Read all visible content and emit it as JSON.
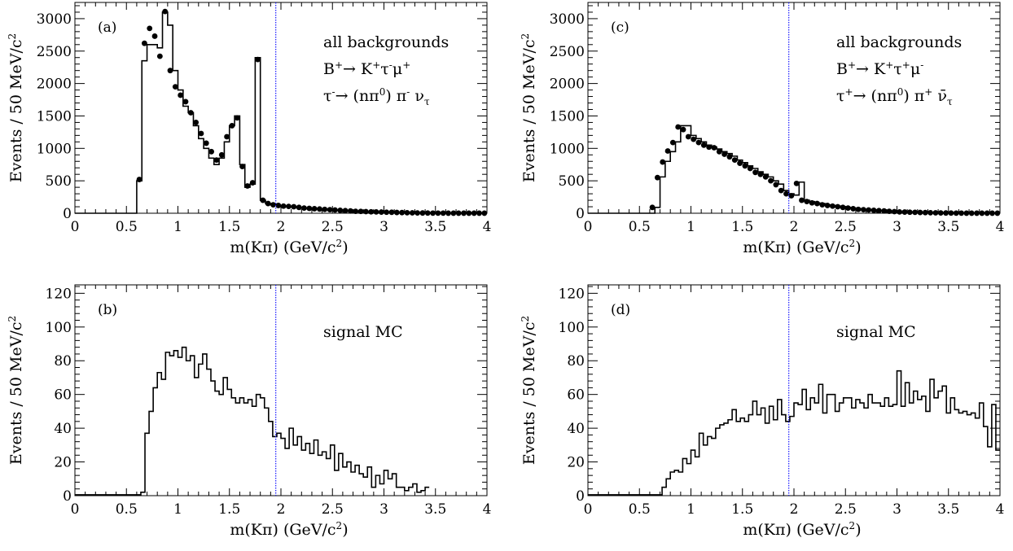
{
  "figure": {
    "panels": [
      {
        "label": "(a)",
        "type": "histogram_with_points",
        "xlabel": "m(Kπ) (GeV/c²)",
        "ylabel": "Events / 50 MeV/c²",
        "xlim": [
          0,
          4
        ],
        "ylim": [
          0,
          3250
        ],
        "xticks": [
          "0",
          "0.5",
          "1",
          "1.5",
          "2",
          "2.5",
          "3",
          "3.5",
          "4"
        ],
        "yticks": [
          "0",
          "500",
          "1000",
          "1500",
          "2000",
          "2500",
          "3000"
        ],
        "vline_x": 1.95,
        "annotations": [
          "all backgrounds",
          "B⁺→ K⁺τ⁻μ⁺",
          "τ⁻→ (nπ⁰) π⁻ ντ"
        ]
      },
      {
        "label": "(b)",
        "type": "histogram",
        "xlabel": "m(Kπ) (GeV/c²)",
        "ylabel": "Events / 50 MeV/c²",
        "xlim": [
          0,
          4
        ],
        "ylim": [
          0,
          125
        ],
        "xticks": [
          "0",
          "0.5",
          "1",
          "1.5",
          "2",
          "2.5",
          "3",
          "3.5",
          "4"
        ],
        "yticks": [
          "0",
          "20",
          "40",
          "60",
          "80",
          "100",
          "120"
        ],
        "vline_x": 1.95,
        "annotations": [
          "signal MC"
        ]
      },
      {
        "label": "(c)",
        "type": "histogram_with_points",
        "xlabel": "m(Kπ) (GeV/c²)",
        "ylabel": "Events / 50 MeV/c²",
        "xlim": [
          0,
          4
        ],
        "ylim": [
          0,
          3250
        ],
        "xticks": [
          "0",
          "0.5",
          "1",
          "1.5",
          "2",
          "2.5",
          "3",
          "3.5",
          "4"
        ],
        "yticks": [
          "0",
          "500",
          "1000",
          "1500",
          "2000",
          "2500",
          "3000"
        ],
        "vline_x": 1.95,
        "annotations": [
          "all backgrounds",
          "B⁺→ K⁺τ⁺μ⁻",
          "τ⁺→ (nπ⁰) π⁺ ν̄τ"
        ]
      },
      {
        "label": "(d)",
        "type": "histogram",
        "xlabel": "m(Kπ) (GeV/c²)",
        "ylabel": "Events / 50 MeV/c²",
        "xlim": [
          0,
          4
        ],
        "ylim": [
          0,
          125
        ],
        "xticks": [
          "0",
          "0.5",
          "1",
          "1.5",
          "2",
          "2.5",
          "3",
          "3.5",
          "4"
        ],
        "yticks": [
          "0",
          "20",
          "40",
          "60",
          "80",
          "100",
          "120"
        ],
        "vline_x": 1.95,
        "annotations": [
          "signal MC"
        ]
      }
    ],
    "colors": {
      "vline": "#1a1aff",
      "axis": "#000000",
      "histogram": "#000000",
      "points": "#000000"
    }
  },
  "chart_data": [
    {
      "type": "histogram",
      "panel": "(a)",
      "bin_width": 0.05,
      "x_start": 0,
      "hist": [
        0,
        0,
        0,
        0,
        0,
        0,
        0,
        0,
        0,
        0,
        0,
        0,
        500,
        2350,
        2600,
        2600,
        2550,
        3100,
        2900,
        2200,
        1900,
        1650,
        1550,
        1350,
        1150,
        1000,
        850,
        750,
        850,
        1100,
        1350,
        1500,
        750,
        400,
        450,
        2400,
        200,
        150,
        130,
        120,
        110,
        105,
        100,
        90,
        80,
        75,
        70,
        65,
        60,
        55,
        50,
        45,
        40,
        35,
        30,
        28,
        25,
        22,
        20,
        18,
        16,
        15,
        12,
        10,
        8,
        6,
        5,
        4,
        3,
        2,
        0,
        0,
        0,
        0,
        0,
        0,
        0,
        0,
        0,
        0
      ],
      "points_x": [
        0.625,
        0.675,
        0.725,
        0.775,
        0.825,
        0.875,
        0.925,
        0.975,
        1.025,
        1.075,
        1.125,
        1.175,
        1.225,
        1.275,
        1.325,
        1.375,
        1.425,
        1.475,
        1.525,
        1.575,
        1.625,
        1.675,
        1.725,
        1.775,
        1.825,
        1.875,
        1.925,
        1.975,
        2.025,
        2.075,
        2.125,
        2.175,
        2.225,
        2.275,
        2.325,
        2.375,
        2.425,
        2.475,
        2.525,
        2.575,
        2.625,
        2.675,
        2.725,
        2.775,
        2.825,
        2.875,
        2.925,
        2.975,
        3.025,
        3.075,
        3.125,
        3.175,
        3.225,
        3.275,
        3.325,
        3.375,
        3.425,
        3.475,
        3.525,
        3.575,
        3.625,
        3.675,
        3.725,
        3.775,
        3.825,
        3.875,
        3.925,
        3.975
      ],
      "points_y": [
        520,
        2620,
        2850,
        2730,
        2420,
        3110,
        2200,
        1950,
        1820,
        1720,
        1550,
        1400,
        1230,
        1080,
        950,
        820,
        900,
        1180,
        1350,
        1470,
        720,
        420,
        470,
        2370,
        200,
        150,
        130,
        120,
        110,
        105,
        100,
        90,
        80,
        75,
        70,
        65,
        60,
        55,
        50,
        45,
        40,
        35,
        30,
        28,
        25,
        22,
        20,
        18,
        16,
        15,
        12,
        10,
        8,
        6,
        5,
        4,
        3,
        2,
        2,
        2,
        1,
        1,
        1,
        1,
        1,
        1,
        1,
        1
      ]
    },
    {
      "type": "histogram",
      "panel": "(b)",
      "bin_width": 0.04,
      "x_start": 0,
      "hist": [
        0.5,
        0.5,
        0.5,
        0.5,
        0.5,
        0.5,
        0.5,
        0.5,
        0.5,
        0.5,
        0.5,
        0.5,
        0.5,
        0.5,
        0.5,
        0.5,
        2,
        37,
        50,
        64,
        73,
        69,
        85,
        83,
        86,
        82,
        88,
        80,
        83,
        70,
        78,
        84,
        75,
        68,
        62,
        60,
        70,
        63,
        58,
        55,
        58,
        55,
        57,
        53,
        60,
        58,
        52,
        44,
        35,
        37,
        34,
        28,
        40,
        30,
        35,
        27,
        31,
        25,
        33,
        24,
        26,
        22,
        30,
        15,
        25,
        17,
        20,
        14,
        18,
        13,
        11,
        17,
        5,
        12,
        7,
        15,
        10,
        13,
        5,
        5,
        3,
        5,
        7,
        2,
        3,
        5
      ],
      "points_x": [],
      "points_y": []
    },
    {
      "type": "histogram",
      "panel": "(c)",
      "bin_width": 0.05,
      "x_start": 0,
      "hist": [
        0,
        0,
        0,
        0,
        0,
        0,
        0,
        0,
        0,
        0,
        0,
        0,
        0,
        90,
        560,
        800,
        950,
        1100,
        1350,
        1350,
        1200,
        1150,
        1100,
        1050,
        1020,
        990,
        950,
        920,
        880,
        820,
        780,
        730,
        690,
        640,
        600,
        560,
        500,
        450,
        350,
        300,
        280,
        480,
        200,
        180,
        160,
        150,
        130,
        120,
        110,
        100,
        90,
        80,
        70,
        60,
        55,
        50,
        45,
        40,
        35,
        30,
        25,
        20,
        18,
        16,
        14,
        12,
        10,
        8,
        6,
        5,
        4,
        3,
        2,
        2,
        1,
        1,
        1,
        0,
        0,
        0
      ],
      "points_x": [
        0.625,
        0.675,
        0.725,
        0.775,
        0.825,
        0.875,
        0.925,
        0.975,
        1.025,
        1.075,
        1.125,
        1.175,
        1.225,
        1.275,
        1.325,
        1.375,
        1.425,
        1.475,
        1.525,
        1.575,
        1.625,
        1.675,
        1.725,
        1.775,
        1.825,
        1.875,
        1.925,
        1.975,
        2.025,
        2.075,
        2.125,
        2.175,
        2.225,
        2.275,
        2.325,
        2.375,
        2.425,
        2.475,
        2.525,
        2.575,
        2.625,
        2.675,
        2.725,
        2.775,
        2.825,
        2.875,
        2.925,
        2.975,
        3.025,
        3.075,
        3.125,
        3.175,
        3.225,
        3.275,
        3.325,
        3.375,
        3.425,
        3.475,
        3.525,
        3.575,
        3.625,
        3.675,
        3.725,
        3.775,
        3.825,
        3.875,
        3.925,
        3.975
      ],
      "points_y": [
        90,
        550,
        790,
        960,
        1090,
        1330,
        1290,
        1180,
        1140,
        1090,
        1050,
        1020,
        1010,
        950,
        910,
        870,
        820,
        770,
        730,
        690,
        630,
        600,
        560,
        500,
        440,
        350,
        300,
        270,
        460,
        200,
        180,
        160,
        150,
        130,
        120,
        110,
        100,
        90,
        80,
        70,
        60,
        55,
        50,
        45,
        40,
        35,
        30,
        25,
        20,
        18,
        16,
        14,
        12,
        10,
        8,
        6,
        5,
        4,
        3,
        2,
        2,
        1,
        1,
        1,
        1,
        1,
        1,
        1
      ]
    },
    {
      "type": "histogram",
      "panel": "(d)",
      "bin_width": 0.04,
      "x_start": 0,
      "hist": [
        0.5,
        0.5,
        0.5,
        0.5,
        0.5,
        0.5,
        0.5,
        0.5,
        0.5,
        0.5,
        0.5,
        0.5,
        0.5,
        0.5,
        0.5,
        0.5,
        0.5,
        0.5,
        5,
        10,
        14,
        15,
        14,
        22,
        19,
        27,
        23,
        37,
        30,
        35,
        34,
        40,
        42,
        43,
        45,
        51,
        44,
        46,
        44,
        48,
        56,
        48,
        52,
        43,
        53,
        45,
        57,
        48,
        44,
        47,
        55,
        54,
        63,
        51,
        58,
        55,
        66,
        49,
        60,
        60,
        50,
        55,
        58,
        58,
        52,
        57,
        55,
        52,
        60,
        55,
        55,
        53,
        58,
        53,
        54,
        74,
        53,
        67,
        55,
        62,
        57,
        59,
        50,
        69,
        58,
        62,
        65,
        49,
        58,
        51,
        49,
        50,
        48,
        49,
        46,
        55,
        41,
        29,
        54,
        27,
        8,
        2,
        2,
        1,
        1,
        1,
        1,
        1
      ],
      "points_x": [],
      "points_y": []
    }
  ]
}
